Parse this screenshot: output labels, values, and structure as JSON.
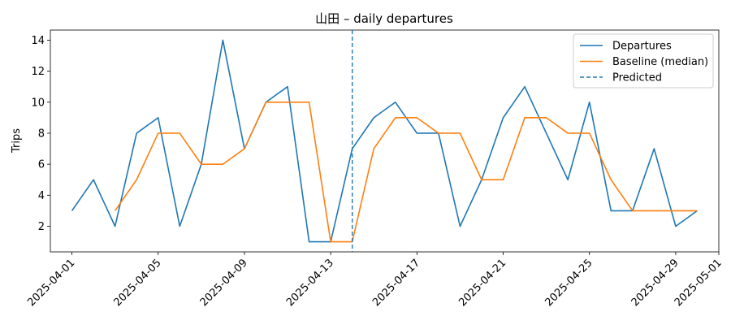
{
  "chart_data": {
    "type": "line",
    "title": "山田 – daily departures",
    "xlabel": "",
    "ylabel": "Trips",
    "x": [
      "2025-04-01",
      "2025-04-02",
      "2025-04-03",
      "2025-04-04",
      "2025-04-05",
      "2025-04-06",
      "2025-04-07",
      "2025-04-08",
      "2025-04-09",
      "2025-04-10",
      "2025-04-11",
      "2025-04-12",
      "2025-04-13",
      "2025-04-14",
      "2025-04-15",
      "2025-04-16",
      "2025-04-17",
      "2025-04-18",
      "2025-04-19",
      "2025-04-20",
      "2025-04-21",
      "2025-04-22",
      "2025-04-23",
      "2025-04-24",
      "2025-04-25",
      "2025-04-26",
      "2025-04-27",
      "2025-04-28",
      "2025-04-29",
      "2025-04-30"
    ],
    "series": [
      {
        "name": "Departures",
        "color": "#1f77b4",
        "values": [
          3,
          5,
          2,
          8,
          9,
          2,
          6,
          14,
          7,
          10,
          11,
          1,
          1,
          7,
          9,
          10,
          8,
          8,
          2,
          5,
          9,
          11,
          8,
          5,
          10,
          3,
          3,
          7,
          2,
          3
        ]
      },
      {
        "name": "Baseline (median)",
        "color": "#ff7f0e",
        "values": [
          null,
          null,
          3,
          5,
          8,
          8,
          6,
          6,
          7,
          10,
          10,
          10,
          1,
          1,
          7,
          9,
          9,
          8,
          8,
          5,
          5,
          9,
          9,
          8,
          8,
          5,
          3,
          3,
          3,
          3
        ]
      }
    ],
    "predicted": {
      "name": "Predicted",
      "x": "2025-04-14",
      "color": "#1f77b4",
      "style": "dashed"
    },
    "xticks": [
      "2025-04-01",
      "2025-04-05",
      "2025-04-09",
      "2025-04-13",
      "2025-04-17",
      "2025-04-21",
      "2025-04-25",
      "2025-04-29",
      "2025-05-01"
    ],
    "yticks": [
      2,
      4,
      6,
      8,
      10,
      12,
      14
    ],
    "xlim": [
      "2025-03-31",
      "2025-05-01"
    ],
    "ylim": [
      0.35,
      14.65
    ],
    "grid": false,
    "legend_position": "top-right"
  }
}
